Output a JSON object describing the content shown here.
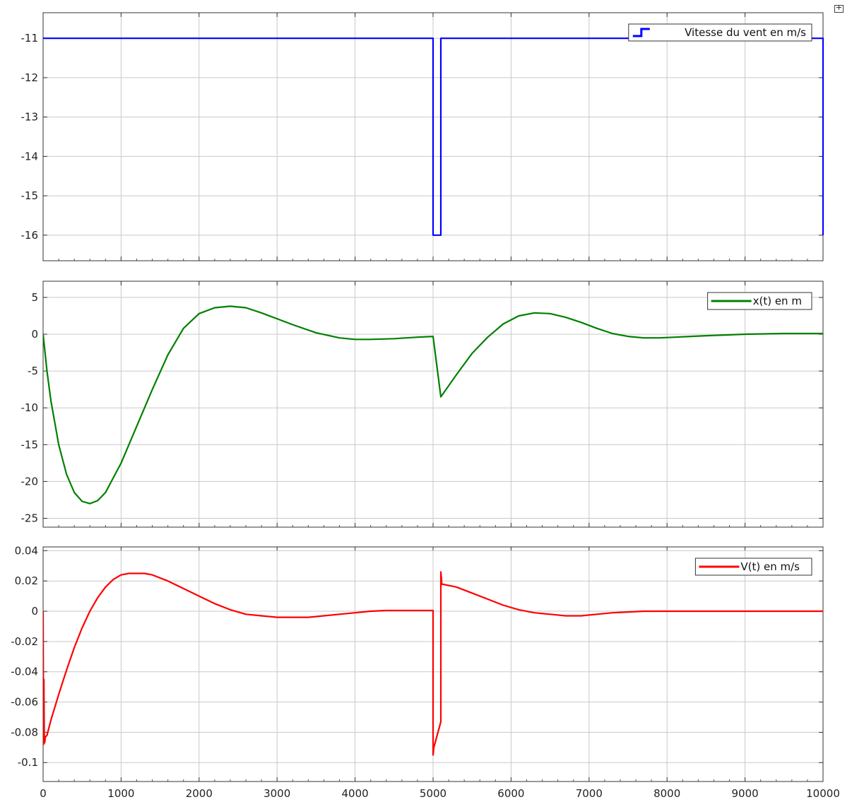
{
  "toolbar": {
    "expand_icon": "expand-icon"
  },
  "chart_data": [
    {
      "type": "line",
      "title": "",
      "xlim": [
        0,
        10000
      ],
      "ylim": [
        -16.65,
        -10.35
      ],
      "yticks": [
        -11,
        -12,
        -13,
        -14,
        -15,
        -16
      ],
      "ytick_labels": [
        "-11",
        "-12",
        "-13",
        "-14",
        "-15",
        "-16"
      ],
      "xticks": [
        0,
        1000,
        2000,
        3000,
        4000,
        5000,
        6000,
        7000,
        8000,
        9000,
        10000
      ],
      "xtick_labels": [],
      "grid": true,
      "legend": "top-right",
      "legend_style": "step",
      "series": [
        {
          "name": "Vitesse du vent en m/s",
          "color": "#0000ff",
          "x": [
            0,
            5000,
            5000,
            5100,
            5100,
            10000,
            10000
          ],
          "y": [
            -11,
            -11,
            -16,
            -16,
            -11,
            -11,
            -16
          ]
        }
      ]
    },
    {
      "type": "line",
      "title": "",
      "xlim": [
        0,
        10000
      ],
      "ylim": [
        -26.2,
        7.2
      ],
      "yticks": [
        5,
        0,
        -5,
        -10,
        -15,
        -20,
        -25
      ],
      "ytick_labels": [
        "5",
        "0",
        "-5",
        "-10",
        "-15",
        "-20",
        "-25"
      ],
      "xticks": [
        0,
        1000,
        2000,
        3000,
        4000,
        5000,
        6000,
        7000,
        8000,
        9000,
        10000
      ],
      "xtick_labels": [],
      "grid": true,
      "legend": "top-right",
      "legend_style": "line",
      "series": [
        {
          "name": "x(t) en m",
          "color": "#008000",
          "x": [
            0,
            50,
            100,
            200,
            300,
            400,
            500,
            600,
            700,
            800,
            1000,
            1200,
            1400,
            1600,
            1800,
            2000,
            2200,
            2400,
            2600,
            2800,
            3000,
            3200,
            3500,
            3800,
            4000,
            4200,
            4500,
            4800,
            5000,
            5100,
            5300,
            5500,
            5700,
            5900,
            6100,
            6300,
            6500,
            6700,
            6900,
            7100,
            7300,
            7500,
            7700,
            7900,
            8100,
            8300,
            8500,
            9000,
            9500,
            10000
          ],
          "y": [
            0,
            -5,
            -9,
            -15,
            -19,
            -21.5,
            -22.7,
            -23,
            -22.6,
            -21.5,
            -17.5,
            -12.5,
            -7.5,
            -2.8,
            0.8,
            2.8,
            3.6,
            3.8,
            3.6,
            2.9,
            2.1,
            1.3,
            0.2,
            -0.5,
            -0.7,
            -0.7,
            -0.6,
            -0.4,
            -0.3,
            -8.5,
            -5.5,
            -2.6,
            -0.4,
            1.4,
            2.5,
            2.9,
            2.8,
            2.3,
            1.6,
            0.8,
            0.1,
            -0.3,
            -0.5,
            -0.5,
            -0.4,
            -0.3,
            -0.2,
            0,
            0.1,
            0.1
          ]
        }
      ]
    },
    {
      "type": "line",
      "title": "",
      "xlim": [
        0,
        10000
      ],
      "ylim": [
        -0.1125,
        0.0425
      ],
      "yticks": [
        0.04,
        0.02,
        0,
        -0.02,
        -0.04,
        -0.06,
        -0.08,
        -0.1
      ],
      "ytick_labels": [
        "0.04",
        "0.02",
        "0",
        "-0.02",
        "-0.04",
        "-0.06",
        "-0.08",
        "-0.1"
      ],
      "xticks": [
        0,
        1000,
        2000,
        3000,
        4000,
        5000,
        6000,
        7000,
        8000,
        9000,
        10000
      ],
      "xtick_labels": [
        "0",
        "1000",
        "2000",
        "3000",
        "4000",
        "5000",
        "6000",
        "7000",
        "8000",
        "9000",
        "10000"
      ],
      "grid": true,
      "legend": "top-right",
      "legend_style": "line",
      "series": [
        {
          "name": "V(t) en m/s",
          "color": "#ff0000",
          "x": [
            0,
            5,
            10,
            15,
            20,
            30,
            50,
            100,
            200,
            300,
            400,
            500,
            600,
            700,
            800,
            900,
            1000,
            1100,
            1200,
            1300,
            1400,
            1600,
            1800,
            2000,
            2200,
            2400,
            2600,
            2800,
            3000,
            3200,
            3400,
            3600,
            3800,
            4000,
            4200,
            4400,
            4600,
            4800,
            5000,
            5000,
            5010,
            5100,
            5100,
            5110,
            5110,
            5300,
            5500,
            5700,
            5900,
            6100,
            6300,
            6500,
            6700,
            6900,
            7100,
            7300,
            7500,
            7700,
            7900,
            8100,
            8300,
            8500,
            9000,
            9500,
            10000
          ],
          "y": [
            0,
            -0.088,
            -0.045,
            -0.086,
            -0.087,
            -0.083,
            -0.082,
            -0.072,
            -0.055,
            -0.039,
            -0.024,
            -0.011,
            0,
            0.009,
            0.016,
            0.021,
            0.024,
            0.025,
            0.025,
            0.025,
            0.024,
            0.02,
            0.015,
            0.01,
            0.005,
            0.001,
            -0.002,
            -0.003,
            -0.004,
            -0.004,
            -0.004,
            -0.003,
            -0.002,
            -0.001,
            0,
            0.0005,
            0.0005,
            0.0005,
            0.0005,
            -0.095,
            -0.09,
            -0.073,
            0.026,
            0.02,
            0.018,
            0.016,
            0.012,
            0.008,
            0.004,
            0.001,
            -0.001,
            -0.002,
            -0.003,
            -0.003,
            -0.002,
            -0.001,
            -0.0005,
            0,
            0,
            0,
            0,
            0,
            0,
            0,
            0
          ]
        }
      ]
    }
  ]
}
